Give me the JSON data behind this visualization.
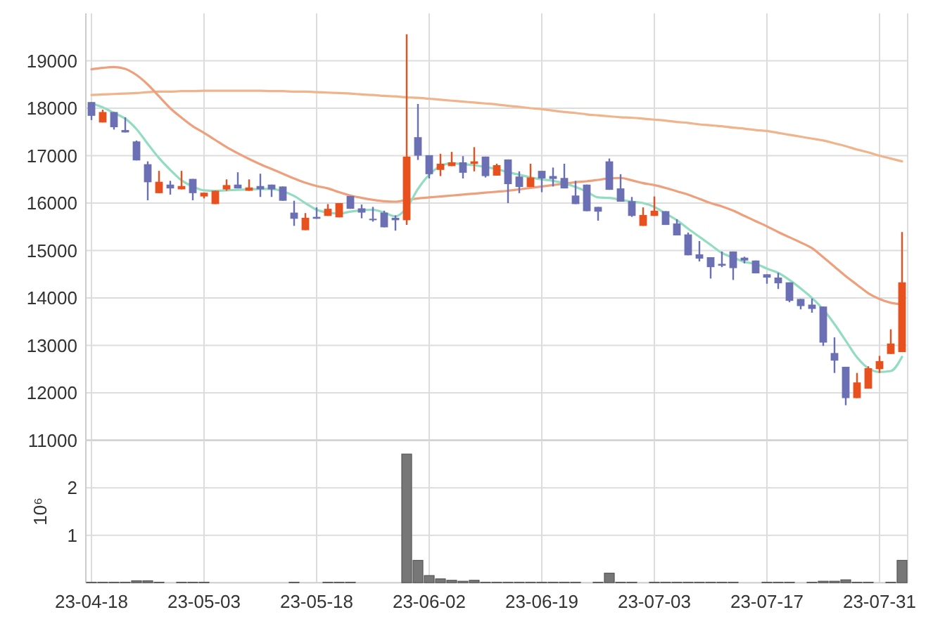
{
  "chart_data": [
    {
      "type": "candlestick",
      "categories": [
        null,
        null,
        null,
        null,
        null,
        null,
        null,
        null,
        null,
        null,
        null,
        null,
        null,
        null,
        null,
        null,
        null,
        null,
        null,
        null,
        null,
        null,
        null,
        null,
        null,
        null,
        null,
        null,
        null,
        null,
        null,
        null,
        null,
        null,
        null,
        null,
        null,
        null,
        null,
        null,
        null,
        null,
        null,
        null,
        null,
        null,
        null,
        null,
        null,
        null,
        null,
        null,
        null,
        null,
        null,
        null,
        null,
        null,
        null,
        null,
        null,
        null,
        null,
        null,
        null,
        null,
        null,
        null,
        null,
        null,
        null,
        null,
        null
      ],
      "ohlc": [
        [
          18130,
          18130,
          17750,
          17840
        ],
        [
          17700,
          17970,
          17700,
          17920
        ],
        [
          17920,
          17920,
          17550,
          17600
        ],
        [
          17540,
          17810,
          17490,
          17490
        ],
        [
          17300,
          17320,
          16900,
          16900
        ],
        [
          16820,
          16880,
          16060,
          16440
        ],
        [
          16210,
          16680,
          16210,
          16450
        ],
        [
          16390,
          16470,
          16180,
          16310
        ],
        [
          16290,
          16680,
          16290,
          16360
        ],
        [
          16510,
          16510,
          16060,
          16210
        ],
        [
          16140,
          16220,
          16100,
          16220
        ],
        [
          15980,
          16260,
          15980,
          16260
        ],
        [
          16290,
          16500,
          16260,
          16380
        ],
        [
          16390,
          16650,
          16310,
          16310
        ],
        [
          16260,
          16500,
          16260,
          16330
        ],
        [
          16360,
          16620,
          16130,
          16290
        ],
        [
          16390,
          16390,
          16130,
          16290
        ],
        [
          16350,
          16350,
          16050,
          16050
        ],
        [
          15800,
          16050,
          15520,
          15670
        ],
        [
          15430,
          15790,
          15430,
          15690
        ],
        [
          15710,
          15910,
          15670,
          15670
        ],
        [
          15730,
          15980,
          15730,
          15880
        ],
        [
          15700,
          16000,
          15700,
          16000
        ],
        [
          16150,
          16150,
          15880,
          15880
        ],
        [
          15890,
          15970,
          15680,
          15800
        ],
        [
          15670,
          15920,
          15610,
          15640
        ],
        [
          15800,
          15840,
          15490,
          15490
        ],
        [
          15690,
          15740,
          15420,
          15640
        ],
        [
          15640,
          19560,
          15540,
          16980
        ],
        [
          17390,
          18090,
          16910,
          17000
        ],
        [
          17010,
          17010,
          16520,
          16610
        ],
        [
          16700,
          17040,
          16570,
          16830
        ],
        [
          16780,
          17080,
          16780,
          16860
        ],
        [
          16860,
          16990,
          16520,
          16640
        ],
        [
          16830,
          17180,
          16670,
          16880
        ],
        [
          16980,
          16980,
          16540,
          16570
        ],
        [
          16580,
          16830,
          16580,
          16800
        ],
        [
          16920,
          16920,
          16000,
          16400
        ],
        [
          16560,
          16670,
          16210,
          16340
        ],
        [
          16340,
          16830,
          16340,
          16540
        ],
        [
          16680,
          16680,
          16230,
          16520
        ],
        [
          16570,
          16750,
          16350,
          16510
        ],
        [
          16530,
          16830,
          16310,
          16310
        ],
        [
          16160,
          16470,
          15980,
          15980
        ],
        [
          16390,
          16390,
          15830,
          15830
        ],
        [
          15920,
          15920,
          15630,
          15820
        ],
        [
          16880,
          16940,
          16280,
          16280
        ],
        [
          16310,
          16610,
          16030,
          16030
        ],
        [
          16040,
          16130,
          15710,
          15730
        ],
        [
          15520,
          15910,
          15520,
          15750
        ],
        [
          15730,
          16140,
          15730,
          15840
        ],
        [
          15830,
          15830,
          15540,
          15540
        ],
        [
          15570,
          15660,
          15320,
          15320
        ],
        [
          15340,
          15380,
          14900,
          14900
        ],
        [
          14920,
          15200,
          14770,
          14830
        ],
        [
          14860,
          14860,
          14410,
          14650
        ],
        [
          14720,
          14980,
          14650,
          14680
        ],
        [
          14980,
          14980,
          14380,
          14630
        ],
        [
          14850,
          14870,
          14730,
          14790
        ],
        [
          14790,
          14790,
          14520,
          14520
        ],
        [
          14500,
          14500,
          14300,
          14430
        ],
        [
          14430,
          14530,
          14190,
          14310
        ],
        [
          14330,
          14330,
          13910,
          13940
        ],
        [
          13980,
          13980,
          13760,
          13830
        ],
        [
          13860,
          13990,
          13690,
          13770
        ],
        [
          13820,
          13820,
          12990,
          13060
        ],
        [
          12840,
          13170,
          12420,
          12680
        ],
        [
          12550,
          12550,
          11740,
          11890
        ],
        [
          11890,
          12420,
          11890,
          12220
        ],
        [
          12090,
          12560,
          12090,
          12520
        ],
        [
          12500,
          12780,
          12420,
          12670
        ],
        [
          12820,
          13340,
          12820,
          13040
        ],
        [
          12860,
          15390,
          12860,
          14330
        ]
      ],
      "colors": [
        "#6b70b5",
        "#e8501e",
        "#6b70b5",
        "#6b70b5",
        "#6b70b5",
        "#6b70b5",
        "#e8501e",
        "#6b70b5",
        "#e8501e",
        "#6b70b5",
        "#e8501e",
        "#e8501e",
        "#e8501e",
        "#6b70b5",
        "#e8501e",
        "#6b70b5",
        "#6b70b5",
        "#6b70b5",
        "#6b70b5",
        "#e8501e",
        "#6b70b5",
        "#e8501e",
        "#e8501e",
        "#6b70b5",
        "#6b70b5",
        "#6b70b5",
        "#6b70b5",
        "#6b70b5",
        "#e8501e",
        "#6b70b5",
        "#6b70b5",
        "#e8501e",
        "#e8501e",
        "#6b70b5",
        "#e8501e",
        "#6b70b5",
        "#e8501e",
        "#6b70b5",
        "#6b70b5",
        "#e8501e",
        "#6b70b5",
        "#6b70b5",
        "#6b70b5",
        "#6b70b5",
        "#6b70b5",
        "#6b70b5",
        "#6b70b5",
        "#6b70b5",
        "#6b70b5",
        "#e8501e",
        "#e8501e",
        "#6b70b5",
        "#6b70b5",
        "#6b70b5",
        "#6b70b5",
        "#6b70b5",
        "#6b70b5",
        "#6b70b5",
        "#6b70b5",
        "#6b70b5",
        "#6b70b5",
        "#6b70b5",
        "#6b70b5",
        "#6b70b5",
        "#6b70b5",
        "#6b70b5",
        "#6b70b5",
        "#6b70b5",
        "#e8501e",
        "#e8501e",
        "#e8501e",
        "#e8501e",
        "#e8501e"
      ],
      "series": [
        {
          "type": "line",
          "color": "#f0b48c",
          "values": [
            18280,
            18290,
            18300,
            18310,
            18320,
            18340,
            18350,
            18350,
            18360,
            18360,
            18370,
            18370,
            18370,
            18370,
            18370,
            18370,
            18360,
            18360,
            18350,
            18350,
            18340,
            18330,
            18320,
            18310,
            18290,
            18280,
            18260,
            18250,
            18230,
            18220,
            18200,
            18180,
            18160,
            18140,
            18120,
            18100,
            18080,
            18050,
            18030,
            18000,
            17980,
            17950,
            17920,
            17900,
            17870,
            17850,
            17830,
            17810,
            17800,
            17780,
            17760,
            17740,
            17710,
            17690,
            17660,
            17640,
            17620,
            17590,
            17570,
            17540,
            17520,
            17480,
            17440,
            17400,
            17360,
            17320,
            17260,
            17200,
            17130,
            17070,
            17000,
            16940,
            16880
          ]
        },
        {
          "type": "line",
          "color": "#eea07c",
          "values": [
            18820,
            18850,
            18870,
            18830,
            18700,
            18500,
            18250,
            18000,
            17800,
            17620,
            17480,
            17330,
            17180,
            17050,
            16930,
            16820,
            16720,
            16620,
            16520,
            16430,
            16360,
            16310,
            16230,
            16160,
            16110,
            16070,
            16040,
            16030,
            16070,
            16100,
            16120,
            16140,
            16160,
            16180,
            16200,
            16220,
            16240,
            16260,
            16290,
            16320,
            16350,
            16380,
            16410,
            16440,
            16460,
            16490,
            16520,
            16530,
            16480,
            16420,
            16380,
            16320,
            16250,
            16180,
            16090,
            16000,
            15930,
            15840,
            15730,
            15620,
            15510,
            15390,
            15280,
            15170,
            15050,
            14860,
            14660,
            14460,
            14280,
            14100,
            13980,
            13900,
            13870
          ]
        },
        {
          "type": "line",
          "color": "#92dcc2",
          "values": [
            18100,
            18020,
            17900,
            17780,
            17560,
            17250,
            16950,
            16700,
            16480,
            16350,
            16270,
            16260,
            16270,
            16280,
            16290,
            16300,
            16300,
            16250,
            16150,
            16000,
            15860,
            15800,
            15780,
            15820,
            15850,
            15860,
            15800,
            15720,
            15900,
            16300,
            16600,
            16780,
            16840,
            16820,
            16800,
            16760,
            16720,
            16650,
            16600,
            16540,
            16500,
            16470,
            16420,
            16340,
            16240,
            16120,
            16110,
            16070,
            16030,
            16000,
            15920,
            15780,
            15640,
            15460,
            15290,
            15120,
            14950,
            14850,
            14760,
            14720,
            14620,
            14530,
            14380,
            14200,
            14000,
            13760,
            13450,
            13100,
            12750,
            12520,
            12440,
            12460,
            12760
          ]
        }
      ],
      "ylim": [
        11000,
        20000
      ],
      "yticks": [
        11000,
        12000,
        13000,
        14000,
        15000,
        16000,
        17000,
        18000,
        19000
      ],
      "grid": true,
      "tick_labels": "y"
    },
    {
      "type": "bar",
      "ylabel": "10⁶",
      "categories": [
        "23-04-18",
        null,
        null,
        null,
        null,
        null,
        null,
        null,
        null,
        null,
        "23-05-03",
        null,
        null,
        null,
        null,
        null,
        null,
        null,
        null,
        null,
        "23-05-18",
        null,
        null,
        null,
        null,
        null,
        null,
        null,
        null,
        null,
        "23-06-02",
        null,
        null,
        null,
        null,
        null,
        null,
        null,
        null,
        null,
        "23-06-19",
        null,
        null,
        null,
        null,
        null,
        null,
        null,
        null,
        null,
        "23-07-03",
        null,
        null,
        null,
        null,
        null,
        null,
        null,
        null,
        null,
        "23-07-17",
        null,
        null,
        null,
        null,
        null,
        null,
        null,
        null,
        null,
        "23-07-31",
        null,
        null
      ],
      "values": [
        0.01,
        0.01,
        0.01,
        0.01,
        0.04,
        0.04,
        0.01,
        0,
        0.01,
        0.01,
        0.01,
        0,
        0,
        0,
        0,
        0,
        0,
        0,
        0.01,
        0,
        0,
        0.01,
        0.01,
        0.01,
        0,
        0,
        0,
        0,
        2.71,
        0.47,
        0.15,
        0.08,
        0.05,
        0.03,
        0.05,
        0.01,
        0.01,
        0.01,
        0.01,
        0.01,
        0.01,
        0.01,
        0.01,
        0.01,
        0,
        0.01,
        0.2,
        0.01,
        0.01,
        0,
        0.01,
        0.01,
        0.01,
        0.01,
        0.01,
        0.01,
        0.01,
        0.01,
        0,
        0,
        0.01,
        0.01,
        0.01,
        0,
        0.01,
        0.03,
        0.03,
        0.06,
        0.01,
        0.01,
        0,
        0.01,
        0.47
      ],
      "color": "#777777",
      "ylim": [
        0,
        3
      ],
      "yticks": [
        1,
        2
      ],
      "grid": true
    }
  ]
}
